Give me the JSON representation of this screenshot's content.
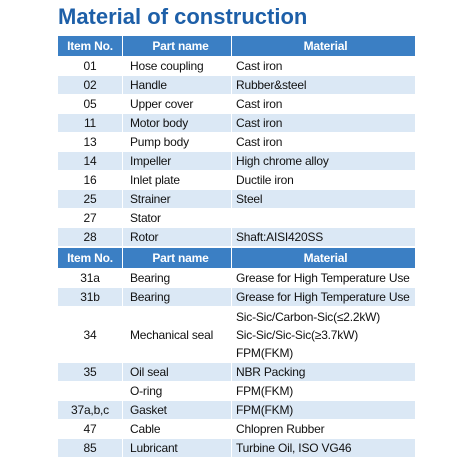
{
  "title": "Material of construction",
  "tables": [
    {
      "header": [
        "Item No.",
        "Part name",
        "Material"
      ],
      "rows": [
        [
          "01",
          "Hose coupling",
          [
            "Cast iron"
          ]
        ],
        [
          "02",
          "Handle",
          [
            "Rubber&steel"
          ]
        ],
        [
          "05",
          "Upper cover",
          [
            "Cast iron"
          ]
        ],
        [
          "11",
          "Motor body",
          [
            "Cast iron"
          ]
        ],
        [
          "13",
          "Pump body",
          [
            "Cast iron"
          ]
        ],
        [
          "14",
          "Impeller",
          [
            "High chrome alloy"
          ]
        ],
        [
          "16",
          "Inlet plate",
          [
            "Ductile iron"
          ]
        ],
        [
          "25",
          "Strainer",
          [
            "Steel"
          ]
        ],
        [
          "27",
          "Stator",
          null
        ],
        [
          "28",
          "Rotor",
          [
            "Shaft:AISI420SS"
          ]
        ]
      ]
    },
    {
      "header": [
        "Item No.",
        "Part name",
        "Material"
      ],
      "rows": [
        [
          "31a",
          "Bearing",
          [
            "Grease for High Temperature Use"
          ]
        ],
        [
          "31b",
          "Bearing",
          [
            "Grease for High Temperature Use"
          ]
        ],
        [
          "34",
          "Mechanical seal",
          [
            "Sic-Sic/Carbon-Sic(≤2.2kW)",
            "Sic-Sic/Sic-Sic(≥3.7kW)",
            "FPM(FKM)"
          ]
        ],
        [
          "35",
          "Oil seal",
          [
            "NBR Packing"
          ]
        ],
        [
          null,
          "O-ring",
          [
            "FPM(FKM)"
          ]
        ],
        [
          "37a,b,c",
          "Gasket",
          [
            "FPM(FKM)"
          ]
        ],
        [
          "47",
          "Cable",
          [
            "Chlopren Rubber"
          ]
        ],
        [
          "85",
          "Lubricant",
          [
            "Turbine Oil, ISO VG46"
          ]
        ]
      ]
    }
  ]
}
